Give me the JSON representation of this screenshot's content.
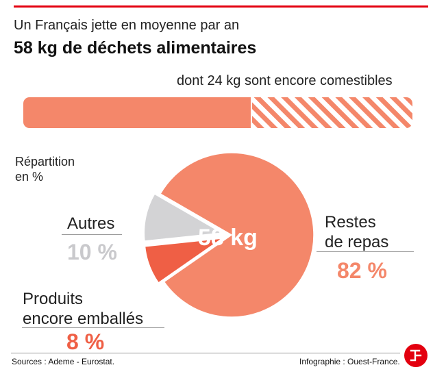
{
  "header": {
    "subtitle": "Un Français jette en moyenne par an",
    "title": "58 kg de déchets alimentaires",
    "edible_note": "dont 24 kg sont encore comestibles"
  },
  "total_bar": {
    "total_kg": 58,
    "edible_kg": 24,
    "solid_color": "#f4876a",
    "hatch_color": "#f4876a"
  },
  "chart_data": {
    "type": "pie",
    "title": "Répartition en %",
    "center_label": "58 kg",
    "slices": [
      {
        "name": "Restes de repas",
        "value": 82,
        "color": "#f4876a"
      },
      {
        "name": "Produits encore emballés",
        "value": 8,
        "color": "#ef5f45"
      },
      {
        "name": "Autres",
        "value": 10,
        "color": "#d3d3d5"
      }
    ]
  },
  "labels": {
    "repartition_line1": "Répartition",
    "repartition_line2": "en %",
    "restes_line1": "Restes",
    "restes_line2": "de repas",
    "restes_pct": "82 %",
    "autres": "Autres",
    "autres_pct": "10 %",
    "produits_line1": "Produits",
    "produits_line2": "encore emballés",
    "produits_pct": "8 %"
  },
  "colors": {
    "accent_red": "#e3000f",
    "salmon": "#f4876a",
    "orange_red": "#ef5f45",
    "grey": "#c9c9cc"
  },
  "footer": {
    "sources": "Sources : Ademe - Eurostat.",
    "credit": "Infographie : Ouest-France."
  }
}
